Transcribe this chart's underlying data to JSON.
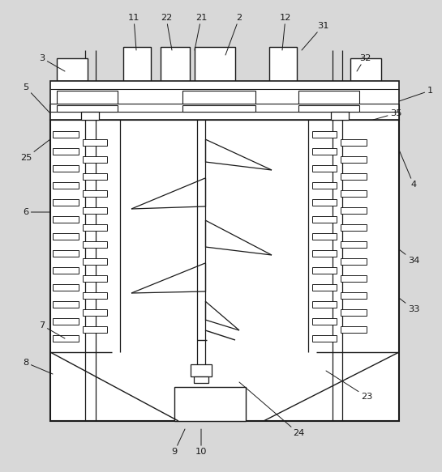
{
  "bg_color": "#d8d8d8",
  "fg_color": "#ffffff",
  "line_color": "#1a1a1a",
  "lw": 1.0,
  "fig_width": 5.45,
  "fig_height": 5.83,
  "labels_info": [
    [
      "1",
      530,
      112,
      492,
      125
    ],
    [
      "2",
      295,
      22,
      278,
      68
    ],
    [
      "3",
      52,
      72,
      80,
      88
    ],
    [
      "4",
      510,
      228,
      492,
      185
    ],
    [
      "5",
      32,
      108,
      62,
      140
    ],
    [
      "6",
      32,
      262,
      62,
      262
    ],
    [
      "7",
      52,
      402,
      80,
      418
    ],
    [
      "8",
      32,
      448,
      65,
      462
    ],
    [
      "9",
      215,
      558,
      228,
      530
    ],
    [
      "10",
      248,
      558,
      248,
      530
    ],
    [
      "11",
      165,
      22,
      168,
      62
    ],
    [
      "12",
      352,
      22,
      348,
      62
    ],
    [
      "21",
      248,
      22,
      240,
      62
    ],
    [
      "22",
      205,
      22,
      212,
      62
    ],
    [
      "23",
      452,
      490,
      402,
      458
    ],
    [
      "24",
      368,
      535,
      295,
      472
    ],
    [
      "25",
      32,
      195,
      62,
      172
    ],
    [
      "31",
      398,
      32,
      372,
      62
    ],
    [
      "32",
      450,
      72,
      440,
      88
    ],
    [
      "33",
      510,
      382,
      492,
      368
    ],
    [
      "34",
      510,
      322,
      492,
      308
    ],
    [
      "35",
      488,
      140,
      460,
      148
    ]
  ]
}
